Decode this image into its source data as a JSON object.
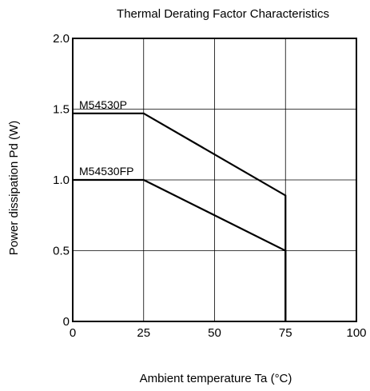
{
  "chart_data": {
    "type": "line",
    "title": "Thermal Derating Factor Characteristics",
    "xlabel": "Ambient temperature  Ta (°C)",
    "ylabel": "Power dissipation  Pd (W)",
    "xlim": [
      0,
      100
    ],
    "ylim": [
      0,
      2.0
    ],
    "x_ticks": [
      0,
      25,
      50,
      75,
      100
    ],
    "x_tick_labels": [
      "0",
      "25",
      "50",
      "75",
      "100"
    ],
    "y_ticks": [
      0,
      0.5,
      1.0,
      1.5,
      2.0
    ],
    "y_tick_labels": [
      "0",
      "0.5",
      "1.0",
      "1.5",
      "2.0"
    ],
    "grid": true,
    "legend": "none",
    "series": [
      {
        "name": "M54530P",
        "x": [
          0,
          25,
          75,
          75
        ],
        "y": [
          1.47,
          1.47,
          0.89,
          0
        ]
      },
      {
        "name": "M54530FP",
        "x": [
          0,
          25,
          75,
          75
        ],
        "y": [
          1.0,
          1.0,
          0.5,
          0
        ]
      }
    ]
  }
}
